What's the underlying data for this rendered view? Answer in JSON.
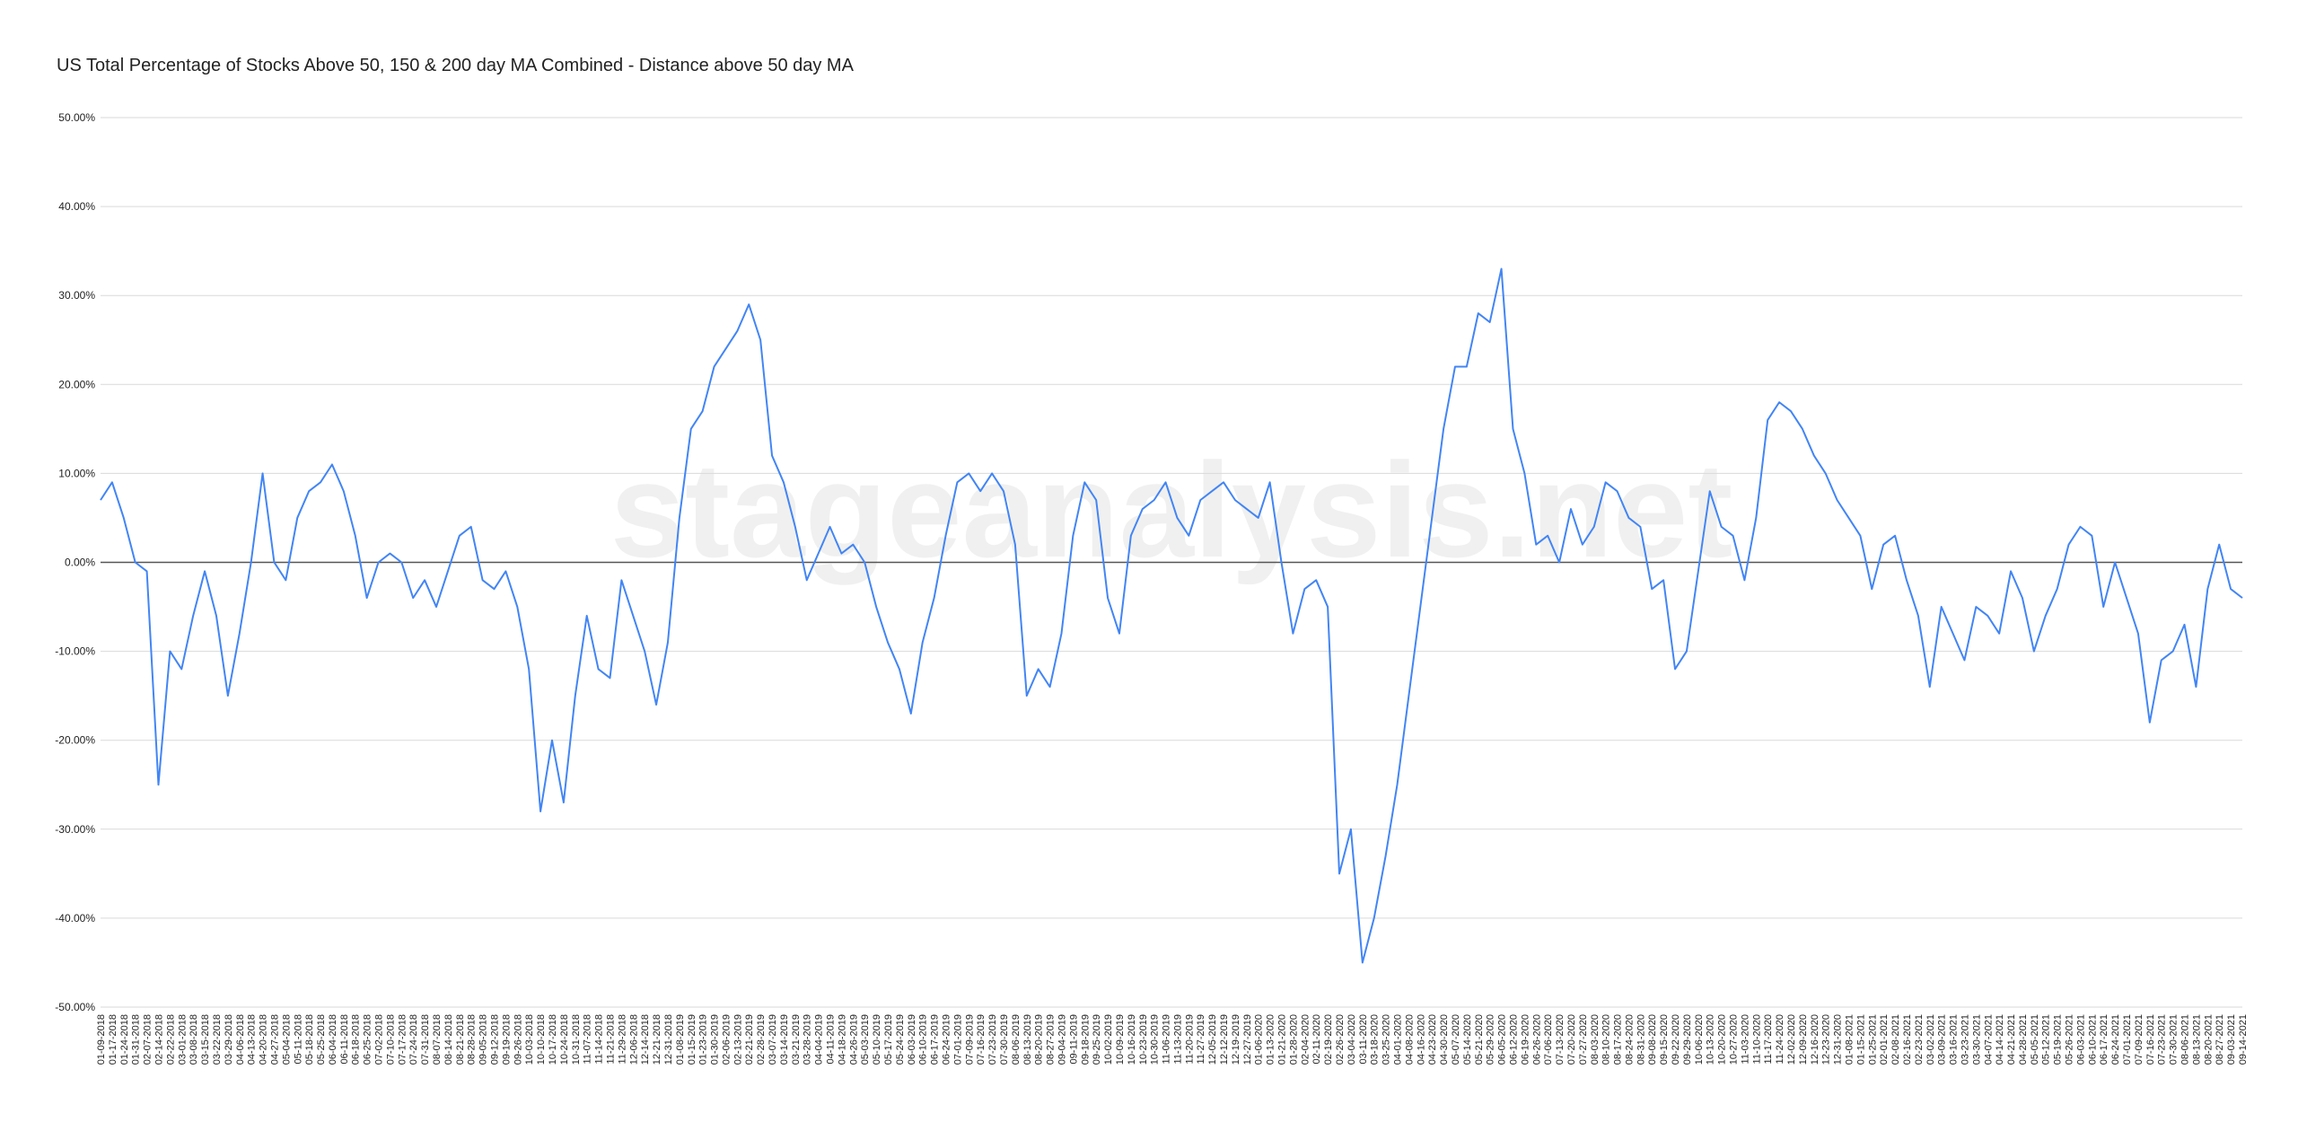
{
  "chart_data": {
    "type": "line",
    "title": "US Total Percentage of Stocks Above 50, 150 & 200 day MA Combined - Distance above 50 day MA",
    "watermark": "stageanalysis.net",
    "categories": [
      "01-09-2018",
      "01-17-2018",
      "01-24-2018",
      "01-31-2018",
      "02-07-2018",
      "02-14-2018",
      "02-22-2018",
      "03-01-2018",
      "03-08-2018",
      "03-15-2018",
      "03-22-2018",
      "03-29-2018",
      "04-06-2018",
      "04-13-2018",
      "04-20-2018",
      "04-27-2018",
      "05-04-2018",
      "05-11-2018",
      "05-18-2018",
      "05-25-2018",
      "06-04-2018",
      "06-11-2018",
      "06-18-2018",
      "06-25-2018",
      "07-02-2018",
      "07-10-2018",
      "07-17-2018",
      "07-24-2018",
      "07-31-2018",
      "08-07-2018",
      "08-14-2018",
      "08-21-2018",
      "08-28-2018",
      "09-05-2018",
      "09-12-2018",
      "09-19-2018",
      "09-26-2018",
      "10-03-2018",
      "10-10-2018",
      "10-17-2018",
      "10-24-2018",
      "10-31-2018",
      "11-07-2018",
      "11-14-2018",
      "11-21-2018",
      "11-29-2018",
      "12-06-2018",
      "12-14-2018",
      "12-21-2018",
      "12-31-2018",
      "01-08-2019",
      "01-15-2019",
      "01-23-2019",
      "01-30-2019",
      "02-06-2019",
      "02-13-2019",
      "02-21-2019",
      "02-28-2019",
      "03-07-2019",
      "03-14-2019",
      "03-21-2019",
      "03-28-2019",
      "04-04-2019",
      "04-11-2019",
      "04-18-2019",
      "04-26-2019",
      "05-03-2019",
      "05-10-2019",
      "05-17-2019",
      "05-24-2019",
      "06-03-2019",
      "06-10-2019",
      "06-17-2019",
      "06-24-2019",
      "07-01-2019",
      "07-09-2019",
      "07-16-2019",
      "07-23-2019",
      "07-30-2019",
      "08-06-2019",
      "08-13-2019",
      "08-20-2019",
      "08-27-2019",
      "09-04-2019",
      "09-11-2019",
      "09-18-2019",
      "09-25-2019",
      "10-02-2019",
      "10-09-2019",
      "10-16-2019",
      "10-23-2019",
      "10-30-2019",
      "11-06-2019",
      "11-13-2019",
      "11-20-2019",
      "11-27-2019",
      "12-05-2019",
      "12-12-2019",
      "12-19-2019",
      "12-27-2019",
      "01-06-2020",
      "01-13-2020",
      "01-21-2020",
      "01-28-2020",
      "02-04-2020",
      "02-11-2020",
      "02-19-2020",
      "02-26-2020",
      "03-04-2020",
      "03-11-2020",
      "03-18-2020",
      "03-25-2020",
      "04-01-2020",
      "04-08-2020",
      "04-16-2020",
      "04-23-2020",
      "04-30-2020",
      "05-07-2020",
      "05-14-2020",
      "05-21-2020",
      "05-29-2020",
      "06-05-2020",
      "06-12-2020",
      "06-19-2020",
      "06-26-2020",
      "07-06-2020",
      "07-13-2020",
      "07-20-2020",
      "07-27-2020",
      "08-03-2020",
      "08-10-2020",
      "08-17-2020",
      "08-24-2020",
      "08-31-2020",
      "09-08-2020",
      "09-15-2020",
      "09-22-2020",
      "09-29-2020",
      "10-06-2020",
      "10-13-2020",
      "10-20-2020",
      "10-27-2020",
      "11-03-2020",
      "11-10-2020",
      "11-17-2020",
      "11-24-2020",
      "12-02-2020",
      "12-09-2020",
      "12-16-2020",
      "12-23-2020",
      "12-31-2020",
      "01-08-2021",
      "01-15-2021",
      "01-25-2021",
      "02-01-2021",
      "02-08-2021",
      "02-16-2021",
      "02-23-2021",
      "03-02-2021",
      "03-09-2021",
      "03-16-2021",
      "03-23-2021",
      "03-30-2021",
      "04-07-2021",
      "04-14-2021",
      "04-21-2021",
      "04-28-2021",
      "05-05-2021",
      "05-12-2021",
      "05-19-2021",
      "05-26-2021",
      "06-03-2021",
      "06-10-2021",
      "06-17-2021",
      "06-24-2021",
      "07-01-2021",
      "07-09-2021",
      "07-16-2021",
      "07-23-2021",
      "07-30-2021",
      "08-06-2021",
      "08-13-2021",
      "08-20-2021",
      "08-27-2021",
      "09-03-2021",
      "09-14-2021"
    ],
    "values": [
      7,
      9,
      5,
      0,
      -1,
      -25,
      -10,
      -12,
      -6,
      -1,
      -6,
      -15,
      -8,
      0,
      10,
      0,
      -2,
      5,
      8,
      9,
      11,
      8,
      3,
      -4,
      0,
      1,
      0,
      -4,
      -2,
      -5,
      -1,
      3,
      4,
      -2,
      -3,
      -1,
      -5,
      -12,
      -28,
      -20,
      -27,
      -15,
      -6,
      -12,
      -13,
      -2,
      -6,
      -10,
      -16,
      -9,
      5,
      15,
      17,
      22,
      24,
      26,
      29,
      25,
      12,
      9,
      4,
      -2,
      1,
      4,
      1,
      2,
      0,
      -5,
      -9,
      -12,
      -17,
      -9,
      -4,
      3,
      9,
      10,
      8,
      10,
      8,
      2,
      -15,
      -12,
      -14,
      -8,
      3,
      9,
      7,
      -4,
      -8,
      3,
      6,
      7,
      9,
      5,
      3,
      7,
      8,
      9,
      7,
      6,
      5,
      9,
      0,
      -8,
      -3,
      -2,
      -5,
      -35,
      -30,
      -45,
      -40,
      -33,
      -25,
      -15,
      -5,
      5,
      15,
      22,
      22,
      28,
      27,
      33,
      15,
      10,
      2,
      3,
      0,
      6,
      2,
      4,
      9,
      8,
      5,
      4,
      -3,
      -2,
      -12,
      -10,
      -1,
      8,
      4,
      3,
      -2,
      5,
      16,
      18,
      17,
      15,
      12,
      10,
      7,
      5,
      3,
      -3,
      2,
      3,
      -2,
      -6,
      -14,
      -5,
      -8,
      -11,
      -5,
      -6,
      -8,
      -1,
      -4,
      -10,
      -6,
      -3,
      2,
      4,
      3,
      -5,
      0,
      -4,
      -8,
      -18,
      -11,
      -10,
      -7,
      -14,
      -3,
      2,
      -3,
      -4
    ],
    "color": "#4285f4",
    "ylim": [
      -50,
      50
    ],
    "yticks": [
      {
        "value": -50,
        "label": "-50.00%"
      },
      {
        "value": -40,
        "label": "-40.00%"
      },
      {
        "value": -30,
        "label": "-30.00%"
      },
      {
        "value": -20,
        "label": "-20.00%"
      },
      {
        "value": -10,
        "label": "-10.00%"
      },
      {
        "value": 0,
        "label": "0.00%"
      },
      {
        "value": 10,
        "label": "10.00%"
      },
      {
        "value": 20,
        "label": "20.00%"
      },
      {
        "value": 30,
        "label": "30.00%"
      },
      {
        "value": 40,
        "label": "40.00%"
      },
      {
        "value": 50,
        "label": "50.00%"
      }
    ],
    "grid": true
  }
}
